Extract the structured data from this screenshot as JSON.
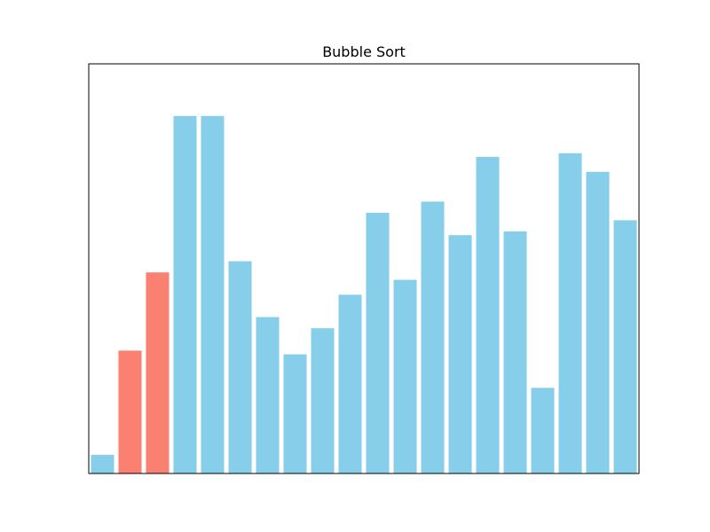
{
  "chart_data": {
    "type": "bar",
    "title": "Bubble Sort",
    "xlabel": "",
    "ylabel": "",
    "values": [
      5,
      33,
      54,
      96,
      96,
      57,
      42,
      32,
      39,
      48,
      70,
      52,
      73,
      64,
      85,
      65,
      23,
      86,
      81,
      68
    ],
    "ylim": [
      0,
      110
    ],
    "axes_visible": false,
    "grid": false,
    "legend": "none",
    "highlight_indices": [
      1,
      2
    ],
    "colors": {
      "default": "#87ceeb",
      "highlight": "#fa8072"
    }
  }
}
